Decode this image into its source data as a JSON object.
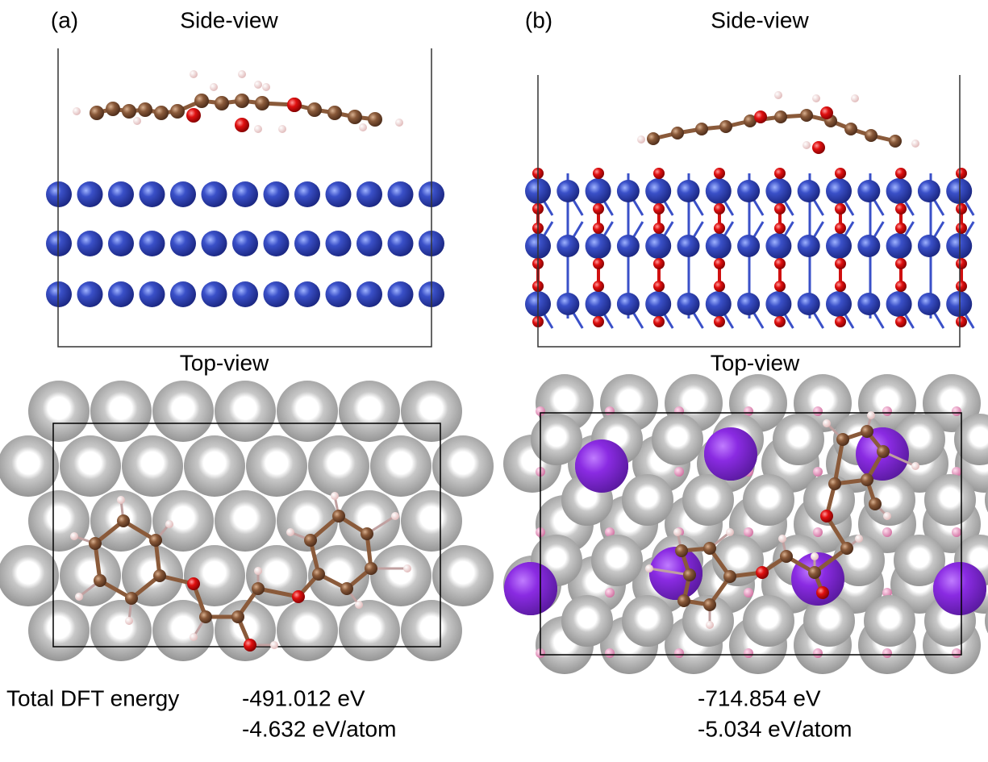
{
  "panels": [
    {
      "label": "(a)",
      "side_title": "Side-view",
      "top_title": "Top-view",
      "total_energy": "-491.012 eV",
      "energy_per_atom": "-4.632 eV/atom"
    },
    {
      "label": "(b)",
      "side_title": "Side-view",
      "top_title": "Top-view",
      "total_energy": "-714.854 eV",
      "energy_per_atom": "-5.034 eV/atom"
    }
  ],
  "energy_label": "Total DFT energy"
}
